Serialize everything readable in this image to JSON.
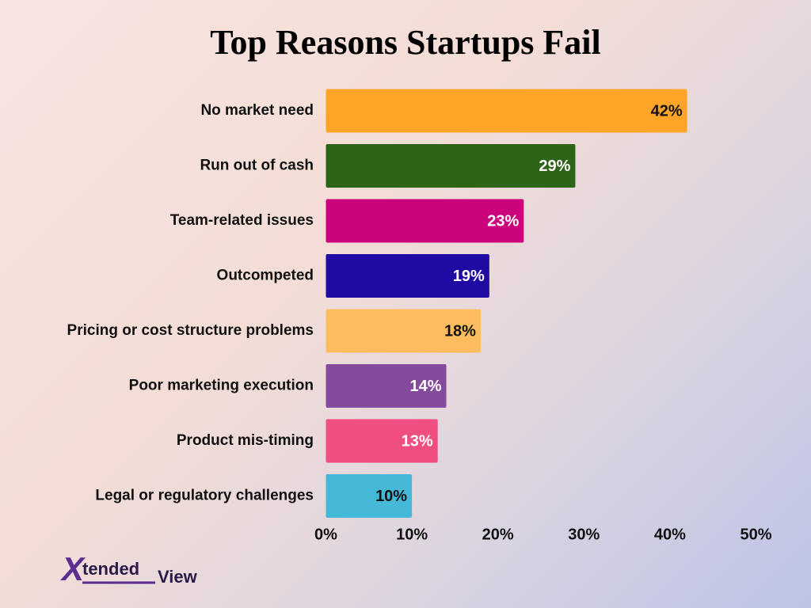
{
  "chart_data": {
    "type": "barh",
    "title": "Top Reasons Startups Fail",
    "categories": [
      "No market need",
      "Run out of cash",
      "Team-related issues",
      "Outcompeted",
      "Pricing or cost structure problems",
      "Poor marketing execution",
      "Product mis-timing",
      "Legal or regulatory challenges"
    ],
    "values": [
      42,
      29,
      23,
      19,
      18,
      14,
      13,
      10
    ],
    "value_labels": [
      "42%",
      "29%",
      "23%",
      "19%",
      "18%",
      "14%",
      "13%",
      "10%"
    ],
    "colors": [
      "#fea528",
      "#2e6418",
      "#cc047c",
      "#1f0aa3",
      "#fdbd5f",
      "#844a9c",
      "#ee4f80",
      "#45b8d7"
    ],
    "xlim": [
      0,
      50
    ],
    "xticks": [
      {
        "value": 0,
        "label": "0%"
      },
      {
        "value": 10,
        "label": "10%"
      },
      {
        "value": 20,
        "label": "20%"
      },
      {
        "value": 30,
        "label": "30%"
      },
      {
        "value": 40,
        "label": "40%"
      },
      {
        "value": 50,
        "label": "50%"
      }
    ],
    "grid": false
  },
  "logo": {
    "mark": "X",
    "text1": "tended",
    "text2": "View"
  }
}
